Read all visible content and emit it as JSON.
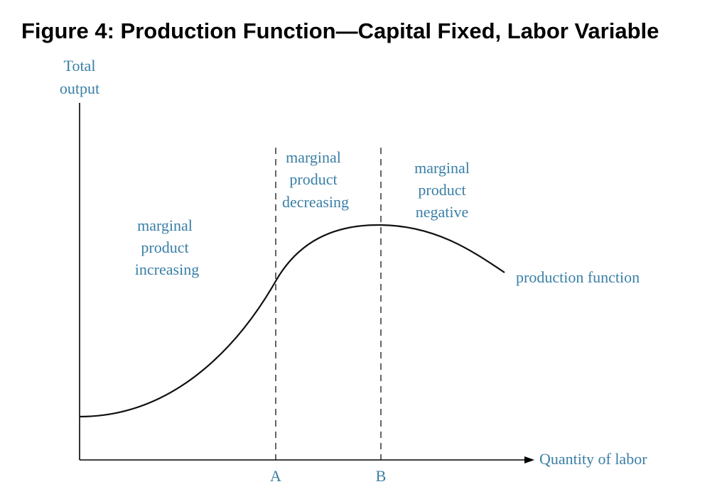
{
  "title": "Figure 4: Production Function—Capital Fixed, Labor Variable",
  "colors": {
    "axis": "#000000",
    "label": "#3a7fa6",
    "curve": "#111111"
  },
  "chart_data": {
    "type": "line",
    "ylabel_line1": "Total",
    "ylabel_line2": "output",
    "xlabel": "Quantity of labor",
    "x_ticks": [
      "A",
      "B"
    ],
    "series": [
      {
        "name": "production function"
      }
    ],
    "regions": [
      {
        "lines": [
          "marginal",
          "product",
          "increasing"
        ]
      },
      {
        "lines": [
          "marginal",
          "product",
          "decreasing"
        ]
      },
      {
        "lines": [
          "marginal",
          "product",
          "negative"
        ]
      }
    ]
  }
}
